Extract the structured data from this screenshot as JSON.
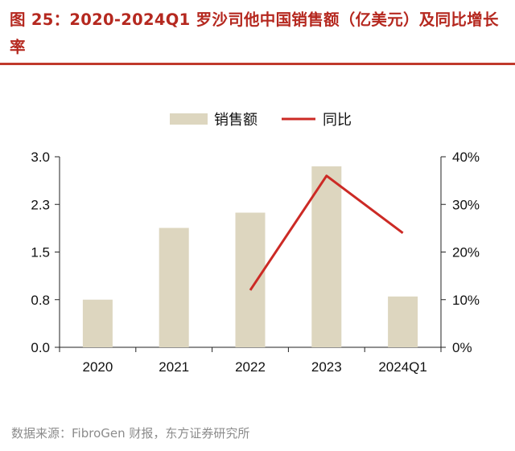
{
  "title": "图 25：2020-2024Q1 罗沙司他中国销售额（亿美元）及同比增长率",
  "source": "数据来源：FibroGen 财报，东方证券研究所",
  "colors": {
    "bar": "#ddd6bf",
    "line": "#cc2a25",
    "title": "#b5281f",
    "axis": "#222222"
  },
  "chart_data": {
    "type": "bar",
    "categories": [
      "2020",
      "2021",
      "2022",
      "2023",
      "2024Q1"
    ],
    "series": [
      {
        "name": "销售额",
        "type": "bar",
        "axis": "left",
        "values": [
          0.75,
          1.88,
          2.12,
          2.85,
          0.8
        ]
      },
      {
        "name": "同比",
        "type": "line",
        "axis": "right",
        "values": [
          null,
          null,
          0.12,
          0.36,
          0.24
        ]
      }
    ],
    "y_left": {
      "ylim": [
        0,
        3.0
      ],
      "ticks": [
        "0.0",
        "0.8",
        "1.5",
        "2.3",
        "3.0"
      ]
    },
    "y_right": {
      "ylim": [
        0,
        0.4
      ],
      "ticks": [
        "0%",
        "10%",
        "20%",
        "30%",
        "40%"
      ]
    },
    "legend_position": "top-center",
    "grid": false
  }
}
